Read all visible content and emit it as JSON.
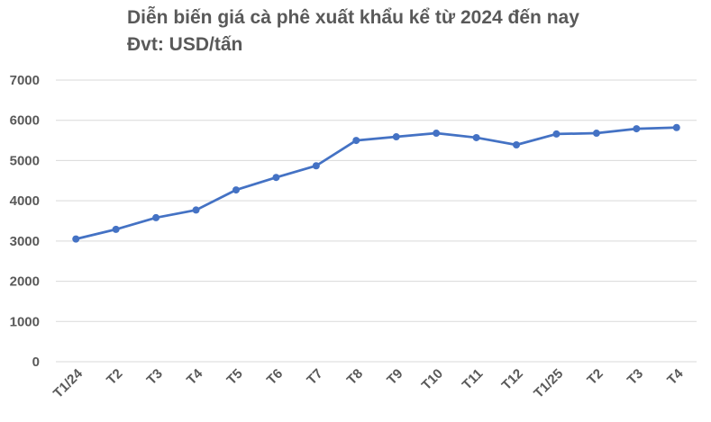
{
  "chart_data": {
    "type": "line",
    "title": "Diễn biến giá cà phê xuất khẩu kể từ 2024 đến nay",
    "subtitle": "Đvt: USD/tấn",
    "xlabel": "",
    "ylabel": "",
    "categories": [
      "T1/24",
      "T2",
      "T3",
      "T4",
      "T5",
      "T6",
      "T7",
      "T8",
      "T9",
      "T10",
      "T11",
      "T12",
      "T1/25",
      "T2",
      "T3",
      "T4"
    ],
    "series": [
      {
        "values": [
          3050,
          3290,
          3580,
          3770,
          4270,
          4580,
          4870,
          5500,
          5590,
          5680,
          5570,
          5390,
          5660,
          5680,
          5790,
          5820
        ]
      }
    ],
    "ylim": [
      0,
      7000
    ],
    "yticks": [
      0,
      1000,
      2000,
      3000,
      4000,
      5000,
      6000,
      7000
    ],
    "grid": true,
    "legend": "none",
    "line_color": "#4472C4",
    "grid_color": "#D9D9D9",
    "text_color": "#595959"
  }
}
